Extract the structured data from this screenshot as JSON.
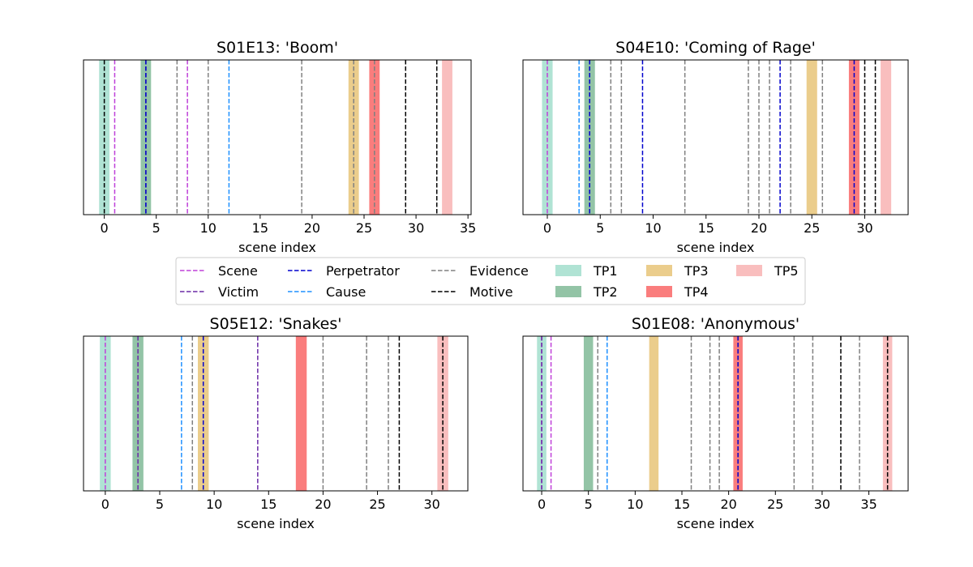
{
  "chart_data": [
    {
      "type": "event-timeline",
      "title": "S01E13: 'Boom'",
      "xlabel": "scene index",
      "xlim": [
        -2,
        35.3
      ],
      "xticks": [
        0,
        5,
        10,
        15,
        20,
        25,
        30,
        35
      ],
      "grid": false,
      "events": {
        "Scene": [
          1,
          8
        ],
        "Victim": [
          4
        ],
        "Perpetrator": [
          4
        ],
        "Cause": [
          12
        ],
        "Evidence": [
          7,
          10,
          19,
          24,
          26
        ],
        "Motive": [
          0,
          29,
          32
        ]
      },
      "turning_points": {
        "TP1": 0,
        "TP2": 4,
        "TP3": 24,
        "TP4": 26,
        "TP5": 33
      }
    },
    {
      "type": "event-timeline",
      "title": "S04E10: 'Coming of Rage'",
      "xlabel": "scene index",
      "xlim": [
        -2.3,
        34.1
      ],
      "xticks": [
        0,
        5,
        10,
        15,
        20,
        25,
        30
      ],
      "grid": false,
      "events": {
        "Scene": [
          0
        ],
        "Victim": [],
        "Perpetrator": [
          4,
          9,
          22,
          29
        ],
        "Cause": [
          3
        ],
        "Evidence": [
          6,
          7,
          13,
          19,
          20,
          21,
          23,
          26
        ],
        "Motive": [
          30,
          31
        ]
      },
      "turning_points": {
        "TP1": 0,
        "TP2": 4,
        "TP3": 25,
        "TP4": 29,
        "TP5": 32
      }
    },
    {
      "type": "event-timeline",
      "title": "S05E12: 'Snakes'",
      "xlabel": "scene index",
      "xlim": [
        -2,
        33.3
      ],
      "xticks": [
        0,
        5,
        10,
        15,
        20,
        25,
        30
      ],
      "grid": false,
      "events": {
        "Scene": [
          0
        ],
        "Victim": [
          3,
          14
        ],
        "Perpetrator": [
          9
        ],
        "Cause": [
          7
        ],
        "Evidence": [
          8,
          20,
          24,
          26
        ],
        "Motive": [
          27,
          31
        ]
      },
      "turning_points": {
        "TP1": 0,
        "TP2": 3,
        "TP3": 9,
        "TP4": 18,
        "TP5": 31
      }
    },
    {
      "type": "event-timeline",
      "title": "S01E08: 'Anonymous'",
      "xlabel": "scene index",
      "xlim": [
        -2,
        39.2
      ],
      "xticks": [
        0,
        5,
        10,
        15,
        20,
        25,
        30,
        35
      ],
      "grid": false,
      "events": {
        "Scene": [
          0,
          1
        ],
        "Victim": [
          0
        ],
        "Perpetrator": [
          21
        ],
        "Cause": [
          7
        ],
        "Evidence": [
          6,
          16,
          18,
          19,
          27,
          29,
          34
        ],
        "Motive": [
          32,
          37
        ]
      },
      "turning_points": {
        "TP1": 0,
        "TP2": 5,
        "TP3": 12,
        "TP4": 21,
        "TP5": 37
      }
    }
  ],
  "legend": {
    "placement": "center",
    "entries": [
      {
        "label": "Scene",
        "kind": "line",
        "color": "#bf40d9"
      },
      {
        "label": "Victim",
        "kind": "line",
        "color": "#6a2aa6"
      },
      {
        "label": "Perpetrator",
        "kind": "line",
        "color": "#0000cd"
      },
      {
        "label": "Cause",
        "kind": "line",
        "color": "#1e90ff"
      },
      {
        "label": "Evidence",
        "kind": "line",
        "color": "#808080"
      },
      {
        "label": "Motive",
        "kind": "line",
        "color": "#000000"
      },
      {
        "label": "TP1",
        "kind": "band",
        "color": "#b0e3d4"
      },
      {
        "label": "TP2",
        "kind": "band",
        "color": "#93c4a6"
      },
      {
        "label": "TP3",
        "kind": "band",
        "color": "#ebcd8c"
      },
      {
        "label": "TP4",
        "kind": "band",
        "color": "#fa7d7d"
      },
      {
        "label": "TP5",
        "kind": "band",
        "color": "#f9bebe"
      }
    ]
  }
}
